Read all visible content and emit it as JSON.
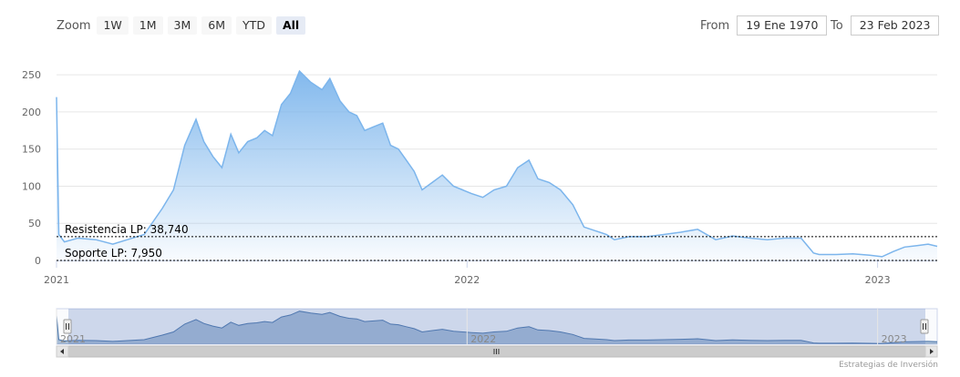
{
  "range_selector": {
    "zoom_label": "Zoom",
    "buttons": [
      "1W",
      "1M",
      "3M",
      "6M",
      "YTD",
      "All"
    ],
    "active": "All",
    "from_label": "From",
    "from_value": "19 Ene 1970",
    "to_label": "To",
    "to_value": "23 Feb 2023"
  },
  "credits": "Estrategias de Inversión",
  "colors": {
    "line": "#7cb5ec",
    "area_top": "#7cb5ec",
    "navigator_fill": "#4572a7",
    "navigator_mask": "rgba(102,133,194,0.3)",
    "grid": "#e6e6e6"
  },
  "chart_data": {
    "type": "area",
    "xlabel": "",
    "ylabel": "",
    "ylim": [
      0,
      260
    ],
    "yticks": [
      0,
      50,
      100,
      150,
      200,
      250
    ],
    "xticks": [
      "2021",
      "2022",
      "2023"
    ],
    "grid": true,
    "series": [
      {
        "x": [
          "2021-01-01",
          "2021-01-03",
          "2021-01-08",
          "2021-01-20",
          "2021-02-05",
          "2021-02-20",
          "2021-03-05",
          "2021-03-20",
          "2021-04-05",
          "2021-04-15",
          "2021-04-25",
          "2021-05-05",
          "2021-05-12",
          "2021-05-20",
          "2021-05-28",
          "2021-06-05",
          "2021-06-12",
          "2021-06-20",
          "2021-06-28",
          "2021-07-05",
          "2021-07-12",
          "2021-07-20",
          "2021-07-28",
          "2021-08-05",
          "2021-08-15",
          "2021-08-25",
          "2021-09-01",
          "2021-09-10",
          "2021-09-18",
          "2021-09-25",
          "2021-10-02",
          "2021-10-10",
          "2021-10-18",
          "2021-10-25",
          "2021-11-01",
          "2021-11-08",
          "2021-11-15",
          "2021-11-22",
          "2021-12-01",
          "2021-12-10",
          "2021-12-20",
          "2021-12-28",
          "2022-01-05",
          "2022-01-15",
          "2022-01-25",
          "2022-02-05",
          "2022-02-15",
          "2022-02-25",
          "2022-03-05",
          "2022-03-15",
          "2022-03-25",
          "2022-04-05",
          "2022-04-15",
          "2022-04-25",
          "2022-05-05",
          "2022-05-12",
          "2022-05-25",
          "2022-06-10",
          "2022-06-25",
          "2022-07-10",
          "2022-07-25",
          "2022-08-10",
          "2022-08-25",
          "2022-09-10",
          "2022-09-25",
          "2022-10-10",
          "2022-10-25",
          "2022-11-05",
          "2022-11-10",
          "2022-11-25",
          "2022-12-10",
          "2022-12-25",
          "2023-01-05",
          "2023-01-15",
          "2023-01-25",
          "2023-02-05",
          "2023-02-15",
          "2023-02-23"
        ],
        "y": [
          220,
          35,
          25,
          30,
          28,
          22,
          28,
          35,
          70,
          95,
          155,
          190,
          160,
          140,
          125,
          170,
          145,
          160,
          165,
          175,
          168,
          210,
          225,
          255,
          240,
          230,
          245,
          215,
          200,
          195,
          175,
          180,
          185,
          155,
          150,
          135,
          120,
          95,
          105,
          115,
          100,
          95,
          90,
          85,
          95,
          100,
          125,
          135,
          110,
          105,
          95,
          75,
          45,
          40,
          35,
          28,
          32,
          32,
          35,
          38,
          42,
          28,
          33,
          30,
          28,
          30,
          30,
          10,
          8,
          8,
          9,
          7,
          5,
          12,
          18,
          20,
          22,
          19
        ]
      }
    ],
    "plot_lines": [
      {
        "label": "Resistencia LP: 38,740",
        "value": 32
      },
      {
        "label": "Soporte LP: 7,950",
        "value": 0
      }
    ],
    "navigator_labels": [
      "2021",
      "2022",
      "2023"
    ]
  }
}
